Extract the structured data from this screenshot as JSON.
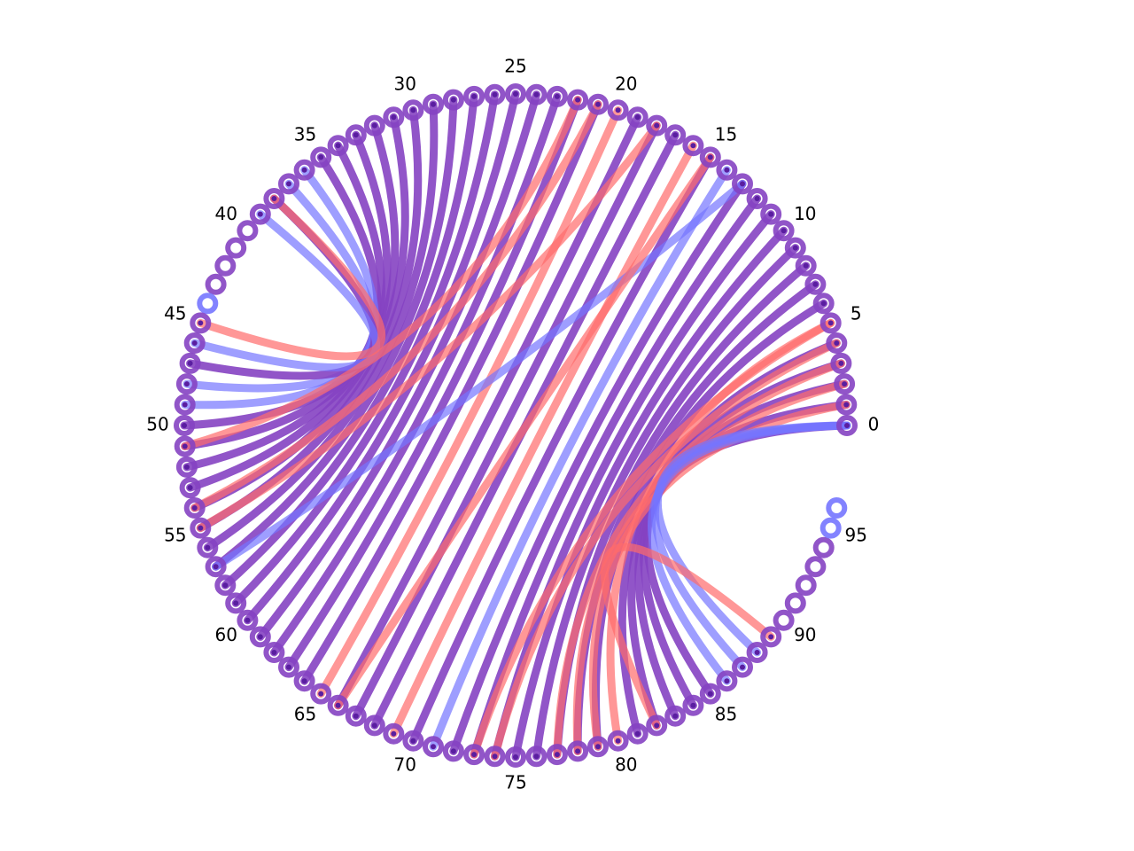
{
  "diagram": {
    "type": "circular-arc-diagram",
    "node_count": 97,
    "label_step": 5,
    "node_labels": [
      "0",
      "5",
      "10",
      "15",
      "20",
      "25",
      "30",
      "35",
      "40",
      "45",
      "50",
      "55",
      "60",
      "65",
      "70",
      "75",
      "80",
      "85",
      "90",
      "95"
    ],
    "colors": {
      "purple": "#8542c2",
      "red": "#ff6b6b",
      "blue": "#7575ff",
      "node_fill_center": "#ffffff",
      "marker_purple": "#5a1ea0",
      "marker_red": "#ff3b3b",
      "marker_blue": "#3b3bff"
    },
    "node_colors": {
      "blue": [
        21,
        22,
        23,
        24,
        44,
        54,
        59,
        69,
        70,
        71,
        72,
        95,
        96
      ],
      "red": [],
      "default": "purple"
    },
    "links": [
      {
        "source": 0,
        "target": 85,
        "color": "purple"
      },
      {
        "source": 1,
        "target": 84,
        "color": "purple"
      },
      {
        "source": 2,
        "target": 83,
        "color": "purple"
      },
      {
        "source": 3,
        "target": 82,
        "color": "purple"
      },
      {
        "source": 4,
        "target": 81,
        "color": "purple"
      },
      {
        "source": 5,
        "target": 80,
        "color": "red"
      },
      {
        "source": 6,
        "target": 79,
        "color": "purple"
      },
      {
        "source": 7,
        "target": 78,
        "color": "purple"
      },
      {
        "source": 8,
        "target": 77,
        "color": "purple"
      },
      {
        "source": 9,
        "target": 76,
        "color": "purple"
      },
      {
        "source": 10,
        "target": 75,
        "color": "purple"
      },
      {
        "source": 11,
        "target": 74,
        "color": "purple"
      },
      {
        "source": 12,
        "target": 73,
        "color": "purple"
      },
      {
        "source": 13,
        "target": 72,
        "color": "purple"
      },
      {
        "source": 14,
        "target": 71,
        "color": "blue"
      },
      {
        "source": 15,
        "target": 70,
        "color": "purple"
      },
      {
        "source": 16,
        "target": 69,
        "color": "red"
      },
      {
        "source": 17,
        "target": 68,
        "color": "purple"
      },
      {
        "source": 18,
        "target": 67,
        "color": "purple"
      },
      {
        "source": 19,
        "target": 66,
        "color": "purple"
      },
      {
        "source": 20,
        "target": 65,
        "color": "red"
      },
      {
        "source": 21,
        "target": 64,
        "color": "purple"
      },
      {
        "source": 22,
        "target": 63,
        "color": "purple"
      },
      {
        "source": 23,
        "target": 62,
        "color": "purple"
      },
      {
        "source": 24,
        "target": 61,
        "color": "purple"
      },
      {
        "source": 25,
        "target": 60,
        "color": "purple"
      },
      {
        "source": 26,
        "target": 59,
        "color": "purple"
      },
      {
        "source": 27,
        "target": 58,
        "color": "purple"
      },
      {
        "source": 28,
        "target": 57,
        "color": "purple"
      },
      {
        "source": 29,
        "target": 56,
        "color": "purple"
      },
      {
        "source": 30,
        "target": 55,
        "color": "purple"
      },
      {
        "source": 31,
        "target": 54,
        "color": "purple"
      },
      {
        "source": 32,
        "target": 53,
        "color": "purple"
      },
      {
        "source": 33,
        "target": 52,
        "color": "purple"
      },
      {
        "source": 34,
        "target": 51,
        "color": "purple"
      },
      {
        "source": 35,
        "target": 50,
        "color": "purple"
      },
      {
        "source": 36,
        "target": 49,
        "color": "blue"
      },
      {
        "source": 37,
        "target": 48,
        "color": "blue"
      },
      {
        "source": 38,
        "target": 47,
        "color": "purple"
      },
      {
        "source": 39,
        "target": 46,
        "color": "blue"
      },
      {
        "source": 45,
        "target": 38,
        "color": "red"
      },
      {
        "source": 51,
        "target": 22,
        "color": "red"
      },
      {
        "source": 54,
        "target": 21,
        "color": "red"
      },
      {
        "source": 55,
        "target": 18,
        "color": "red"
      },
      {
        "source": 57,
        "target": 13,
        "color": "blue"
      },
      {
        "source": 66,
        "target": 15,
        "color": "red"
      },
      {
        "source": 73,
        "target": 5,
        "color": "red"
      },
      {
        "source": 74,
        "target": 4,
        "color": "red"
      },
      {
        "source": 77,
        "target": 3,
        "color": "red"
      },
      {
        "source": 78,
        "target": 2,
        "color": "red"
      },
      {
        "source": 79,
        "target": 1,
        "color": "red"
      },
      {
        "source": 86,
        "target": 0,
        "color": "blue"
      },
      {
        "source": 87,
        "target": 0,
        "color": "blue"
      },
      {
        "source": 88,
        "target": 0,
        "color": "blue"
      },
      {
        "source": 89,
        "target": 82,
        "color": "red"
      }
    ]
  }
}
